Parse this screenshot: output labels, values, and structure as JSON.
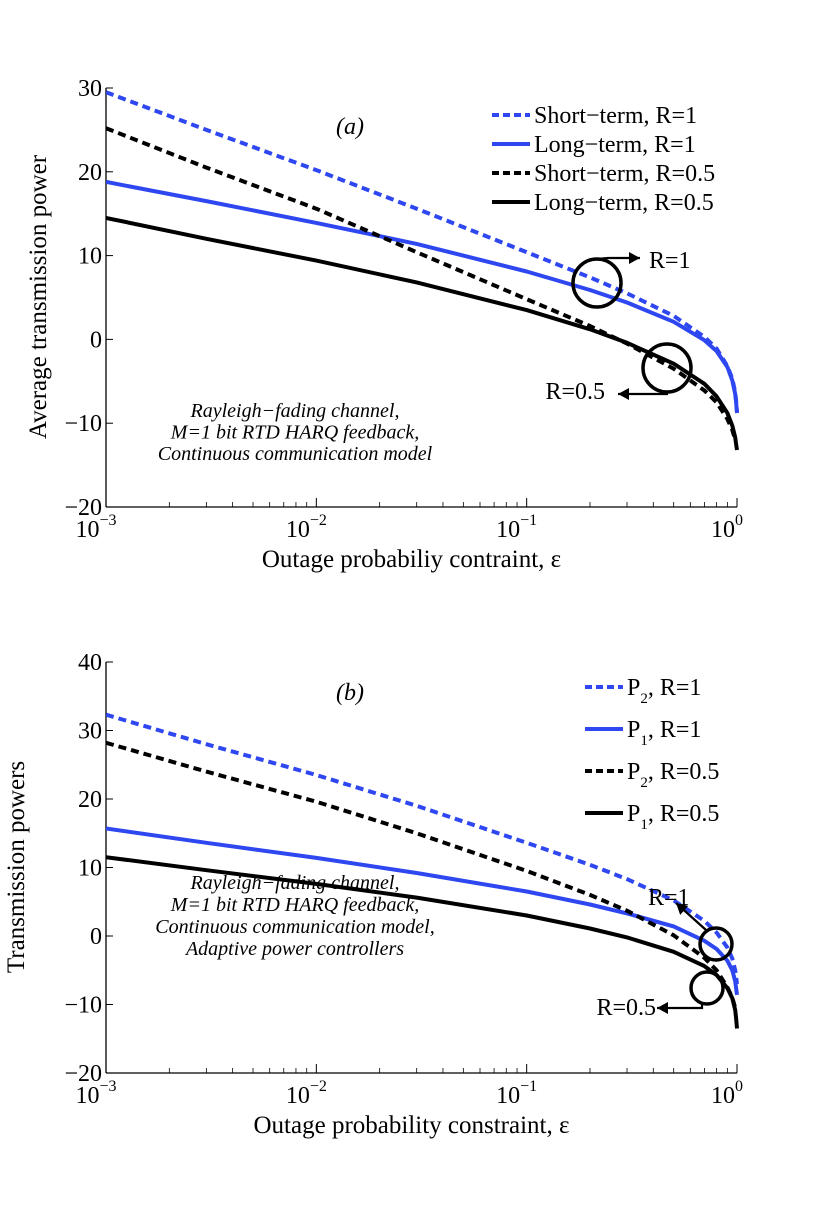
{
  "colors": {
    "blue": "#2e47f0",
    "black": "#000000"
  },
  "chart_data": [
    {
      "type": "line",
      "panel_label": "(a)",
      "xscale": "log",
      "xlim": [
        0.001,
        1
      ],
      "ylim": [
        -20,
        30
      ],
      "yticks": [
        30,
        20,
        10,
        0,
        -10,
        -20
      ],
      "ytick_labels": [
        "30",
        "20",
        "10",
        "0",
        "−10",
        "−20"
      ],
      "xtick_bases": [
        "10",
        "10",
        "10",
        "10"
      ],
      "xtick_exponents": [
        "−3",
        "−2",
        "−1",
        "0"
      ],
      "xlabel": "Outage probabiliy contraint, ε",
      "ylabel": "Average transmission power",
      "legend_position": "top-right",
      "annotation": [
        "Rayleigh−fading channel,",
        "M=1 bit RTD HARQ feedback,",
        "Continuous communication model"
      ],
      "callouts": [
        {
          "label": "R=1",
          "x": 0.22,
          "y": 6.6,
          "direction": "right"
        },
        {
          "label": "R=0.5",
          "x": 0.5,
          "y": -3.7,
          "direction": "left"
        }
      ],
      "series": [
        {
          "name": "Short−term, R=1",
          "legend_main": "Short−term, R=1",
          "color": "blue",
          "dash": true,
          "x": [
            0.001,
            0.003,
            0.01,
            0.03,
            0.1,
            0.2,
            0.3,
            0.5,
            0.7,
            0.8,
            0.9,
            0.95,
            0.98,
            0.99,
            1.0
          ],
          "y": [
            29.5,
            25,
            20.2,
            15.6,
            10.4,
            7.4,
            5.5,
            2.8,
            0.3,
            -1.1,
            -3.2,
            -4.7,
            -6.3,
            -7.3,
            -8.7
          ]
        },
        {
          "name": "Long−term, R=1",
          "legend_main": "Long−term, R=1",
          "color": "blue",
          "dash": false,
          "x": [
            0.001,
            0.003,
            0.01,
            0.03,
            0.1,
            0.2,
            0.3,
            0.5,
            0.7,
            0.8,
            0.9,
            0.95,
            0.98,
            0.99,
            1.0
          ],
          "y": [
            18.8,
            16.5,
            13.9,
            11.4,
            8.1,
            5.9,
            4.4,
            2.1,
            -0.1,
            -1.4,
            -3.3,
            -4.9,
            -6.5,
            -7.5,
            -8.8
          ]
        },
        {
          "name": "Short−term, R=0.5",
          "legend_main": "Short−term, R=0.5",
          "color": "black",
          "dash": true,
          "x": [
            0.001,
            0.003,
            0.01,
            0.03,
            0.1,
            0.2,
            0.3,
            0.5,
            0.7,
            0.8,
            0.9,
            0.95,
            0.98
          ],
          "y": [
            25.2,
            20.5,
            15.6,
            10.4,
            4.8,
            1.6,
            -0.5,
            -3.5,
            -6.1,
            -7.5,
            -9.5,
            -10.8,
            -12.0
          ]
        },
        {
          "name": "Long−term, R=0.5",
          "legend_main": "Long−term, R=0.5",
          "color": "black",
          "dash": false,
          "x": [
            0.001,
            0.003,
            0.01,
            0.03,
            0.1,
            0.2,
            0.3,
            0.5,
            0.7,
            0.8,
            0.9,
            0.95,
            0.98,
            0.99,
            1.0
          ],
          "y": [
            14.5,
            12.0,
            9.4,
            6.8,
            3.5,
            1.2,
            -0.4,
            -2.9,
            -5.3,
            -6.8,
            -8.8,
            -10.3,
            -11.7,
            -12.5,
            -13.2
          ]
        }
      ]
    },
    {
      "type": "line",
      "panel_label": "(b)",
      "xscale": "log",
      "xlim": [
        0.001,
        1
      ],
      "ylim": [
        -20,
        40
      ],
      "yticks": [
        40,
        30,
        20,
        10,
        0,
        -10,
        -20
      ],
      "ytick_labels": [
        "40",
        "30",
        "20",
        "10",
        "0",
        "−10",
        "−20"
      ],
      "xtick_bases": [
        "10",
        "10",
        "10",
        "10"
      ],
      "xtick_exponents": [
        "−3",
        "−2",
        "−1",
        "0"
      ],
      "xlabel": "Outage probability constraint, ε",
      "ylabel": "Transmission powers",
      "legend_position": "top-right",
      "annotation": [
        "Rayleigh−fading channel,",
        "M=1 bit RTD HARQ feedback,",
        "Continuous communication model,",
        "Adaptive power controllers"
      ],
      "callouts": [
        {
          "label": "R=1",
          "x": 0.8,
          "y": -1.5,
          "direction": "up-left"
        },
        {
          "label": "R=0.5",
          "x": 0.73,
          "y": -7.5,
          "direction": "left"
        }
      ],
      "series": [
        {
          "name": "P2, R=1",
          "legend_main": "P",
          "legend_sub": "2",
          "legend_rest": ", R=1",
          "color": "blue",
          "dash": true,
          "x": [
            0.001,
            0.003,
            0.01,
            0.03,
            0.1,
            0.2,
            0.3,
            0.5,
            0.7,
            0.8,
            0.9,
            0.95,
            0.98,
            0.99,
            1.0
          ],
          "y": [
            32.3,
            28,
            23.5,
            19,
            13.6,
            10.4,
            8.3,
            5.2,
            2.2,
            0.5,
            -1.7,
            -3.3,
            -5.0,
            -6.0,
            -7.0
          ]
        },
        {
          "name": "P1, R=1",
          "legend_main": "P",
          "legend_sub": "1",
          "legend_rest": ", R=1",
          "color": "blue",
          "dash": false,
          "x": [
            0.001,
            0.003,
            0.01,
            0.03,
            0.1,
            0.2,
            0.3,
            0.5,
            0.7,
            0.8,
            0.9,
            0.95,
            0.98,
            0.99,
            1.0
          ],
          "y": [
            15.7,
            13.6,
            11.4,
            9.2,
            6.5,
            4.6,
            3.3,
            1.4,
            -0.7,
            -1.9,
            -3.6,
            -5.0,
            -6.6,
            -7.6,
            -8.6
          ]
        },
        {
          "name": "P2, R=0.5",
          "legend_main": "P",
          "legend_sub": "2",
          "legend_rest": ", R=0.5",
          "color": "black",
          "dash": true,
          "x": [
            0.001,
            0.003,
            0.01,
            0.03,
            0.1,
            0.2,
            0.3,
            0.5,
            0.7,
            0.8,
            0.9,
            0.95,
            0.98
          ],
          "y": [
            28.2,
            24,
            19.6,
            15,
            9.5,
            6.0,
            3.7,
            0.1,
            -3.2,
            -5.0,
            -7.5,
            -9.0,
            -10.5
          ]
        },
        {
          "name": "P1, R=0.5",
          "legend_main": "P",
          "legend_sub": "1",
          "legend_rest": ", R=0.5",
          "color": "black",
          "dash": false,
          "x": [
            0.001,
            0.003,
            0.01,
            0.03,
            0.1,
            0.2,
            0.3,
            0.5,
            0.7,
            0.8,
            0.9,
            0.95,
            0.98,
            0.99,
            1.0
          ],
          "y": [
            11.5,
            9.6,
            7.6,
            5.6,
            3.0,
            1.1,
            -0.2,
            -2.3,
            -4.4,
            -5.7,
            -7.6,
            -9.1,
            -10.8,
            -12.0,
            -13.5
          ]
        }
      ]
    }
  ]
}
